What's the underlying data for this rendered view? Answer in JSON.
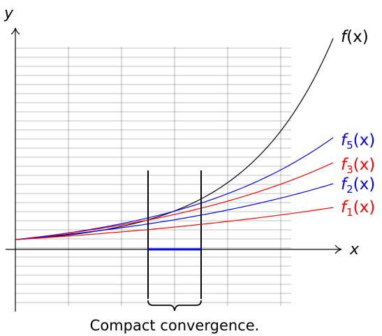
{
  "axes": {
    "x_label": "x",
    "y_label": "y"
  },
  "curves": [
    {
      "id": "f",
      "label_main": "f",
      "label_sub": "",
      "label_suffix": "(x)",
      "color": "#000000"
    },
    {
      "id": "f5",
      "label_main": "f",
      "label_sub": "5",
      "label_suffix": "(x)",
      "color": "#0000ff"
    },
    {
      "id": "f3",
      "label_main": "f",
      "label_sub": "3",
      "label_suffix": "(x)",
      "color": "#ff0000"
    },
    {
      "id": "f2",
      "label_main": "f",
      "label_sub": "2",
      "label_suffix": "(x)",
      "color": "#0000ff"
    },
    {
      "id": "f1",
      "label_main": "f",
      "label_sub": "1",
      "label_suffix": "(x)",
      "color": "#ff0000"
    }
  ],
  "caption": "Compact convergence.",
  "colors": {
    "grid": "#808080",
    "interval": "#0000ff",
    "axis": "#000000"
  }
}
